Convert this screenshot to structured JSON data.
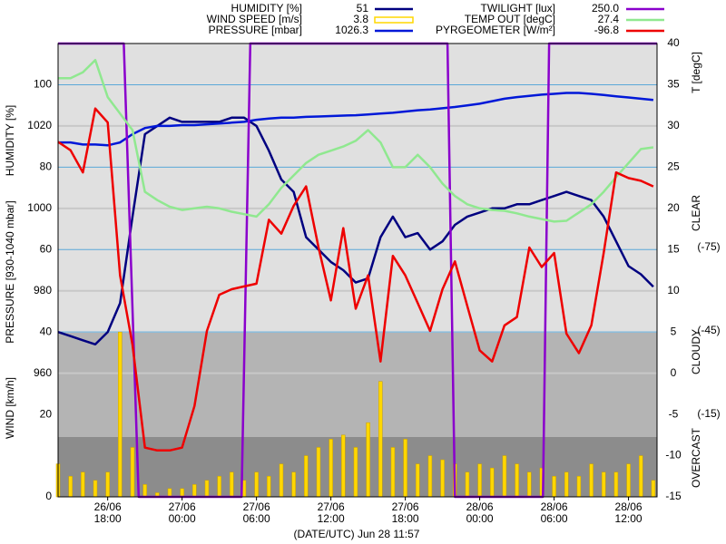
{
  "chart_data": {
    "type": "line",
    "x_label": "(DATE/UTC) Jun 28 11:57",
    "x": [
      14,
      15,
      16,
      17,
      18,
      19,
      20,
      21,
      22,
      23,
      24,
      25,
      26,
      27,
      28,
      29,
      30,
      31,
      32,
      33,
      34,
      35,
      36,
      37,
      38,
      39,
      40,
      41,
      42,
      43,
      44,
      45,
      46,
      47,
      48,
      49,
      50,
      51,
      52,
      53,
      54,
      55,
      56,
      57,
      58,
      59,
      60,
      61,
      62
    ],
    "xlim": [
      14,
      62.3
    ],
    "xticks": [
      {
        "value": 18,
        "label": [
          "26/06",
          "18:00"
        ]
      },
      {
        "value": 24,
        "label": [
          "27/06",
          "00:00"
        ]
      },
      {
        "value": 30,
        "label": [
          "27/06",
          "06:00"
        ]
      },
      {
        "value": 36,
        "label": [
          "27/06",
          "12:00"
        ]
      },
      {
        "value": 42,
        "label": [
          "27/06",
          "18:00"
        ]
      },
      {
        "value": 48,
        "label": [
          "28/06",
          "00:00"
        ]
      },
      {
        "value": 54,
        "label": [
          "28/06",
          "06:00"
        ]
      },
      {
        "value": 60,
        "label": [
          "28/06",
          "12:00"
        ]
      }
    ],
    "axes": {
      "humidity": {
        "label": "HUMIDITY [%]",
        "ylim": [
          0,
          110
        ],
        "yticks": [
          40,
          60,
          80,
          100
        ],
        "grid_color": "#5aa8d8"
      },
      "pressure": {
        "label": "PRESSURE [930-1040 mbar]",
        "ylim": [
          930,
          1040
        ],
        "yticks": [
          960,
          980,
          1000,
          1020
        ],
        "grid_color": "#c8c8c8"
      },
      "wind": {
        "label": "WIND [km/h]",
        "ylim": [
          0,
          110
        ],
        "yticks": [
          0,
          20
        ]
      },
      "temp": {
        "label": "T [degC]",
        "ylim": [
          -15,
          40
        ],
        "yticks": [
          -15,
          -10,
          -5,
          0,
          5,
          10,
          15,
          20,
          25,
          30,
          35,
          40
        ]
      },
      "pyrg": {
        "ylim": [
          14.7,
          -148.4
        ],
        "yticks": [
          {
            "value": -75,
            "label": "(-75)"
          },
          {
            "value": -45,
            "label": "(-45)"
          },
          {
            "value": -15,
            "label": "(-15)"
          }
        ]
      },
      "twilight": {
        "ylim": [
          0,
          250
        ]
      }
    },
    "sky": [
      "CLEAR",
      "CLOUDY",
      "OVERCAST"
    ],
    "series": [
      {
        "name": "HUMIDITY [%]",
        "type": "line",
        "axis": "humidity",
        "color": "#000080",
        "legend_value": "51",
        "values": [
          40,
          39,
          38,
          37,
          40,
          47,
          68,
          88,
          90,
          92,
          91,
          91,
          91,
          91,
          92,
          92,
          90,
          84,
          77,
          74,
          63,
          60,
          57,
          55,
          52,
          53,
          63,
          68,
          63,
          64,
          60,
          62,
          66,
          68,
          69,
          70,
          70,
          71,
          71,
          72,
          73,
          74,
          73,
          72,
          68,
          62,
          56,
          54,
          51
        ]
      },
      {
        "name": "WIND SPEED [m/s]",
        "type": "bar",
        "axis": "wind",
        "color": "#ffd700",
        "legend_value": "3.8",
        "values": [
          8,
          5,
          6,
          4,
          6,
          40,
          12,
          3,
          1,
          2,
          2,
          3,
          4,
          5,
          6,
          4,
          6,
          5,
          8,
          6,
          10,
          12,
          14,
          15,
          12,
          18,
          28,
          12,
          14,
          8,
          10,
          9,
          8,
          6,
          8,
          7,
          10,
          8,
          6,
          7,
          5,
          6,
          5,
          8,
          6,
          6,
          8,
          10,
          4
        ]
      },
      {
        "name": "PRESSURE [mbar]",
        "type": "line",
        "axis": "pressure",
        "color": "#0018d8",
        "legend_value": "1026.3",
        "values": [
          1016,
          1016,
          1015.5,
          1015.5,
          1015.3,
          1016,
          1018,
          1019.5,
          1020,
          1020,
          1020.2,
          1020.2,
          1020.4,
          1020.6,
          1020.8,
          1021,
          1021.5,
          1021.8,
          1022,
          1022,
          1022.2,
          1022.3,
          1022.4,
          1022.5,
          1022.6,
          1022.8,
          1023,
          1023.2,
          1023.5,
          1023.8,
          1024,
          1024.3,
          1024.6,
          1025,
          1025.4,
          1026,
          1026.6,
          1027,
          1027.3,
          1027.6,
          1027.8,
          1028,
          1028,
          1027.8,
          1027.5,
          1027.2,
          1026.9,
          1026.6,
          1026.3
        ]
      },
      {
        "name": "TWILIGHT [lux]",
        "type": "line",
        "axis": "twilight",
        "color": "#8a00cc",
        "legend_value": "250.0",
        "x": [
          14,
          19.3,
          20.5,
          28.8,
          29.5,
          45.4,
          46.0,
          53.1,
          53.6,
          62.3
        ],
        "values": [
          250,
          250,
          0,
          0,
          250,
          250,
          0,
          0,
          250,
          250
        ]
      },
      {
        "name": "TEMP OUT [degC]",
        "type": "line",
        "axis": "temp",
        "color": "#90e890",
        "legend_value": "27.4",
        "values": [
          35.8,
          35.8,
          36.5,
          38,
          33.5,
          31.5,
          29.5,
          22,
          21,
          20.2,
          19.8,
          20,
          20.2,
          20,
          19.6,
          19.3,
          19,
          20.5,
          22.5,
          24,
          25.5,
          26.5,
          27,
          27.5,
          28.2,
          29.5,
          28,
          25,
          25,
          26.5,
          25,
          23,
          21.5,
          20.5,
          20,
          19.8,
          19.7,
          19.4,
          19,
          18.7,
          18.4,
          18.5,
          19.5,
          20.5,
          22,
          23.8,
          25.5,
          27.2,
          27.4
        ]
      },
      {
        "name": "PYRGEOMETER [W/m²]",
        "type": "line",
        "axis": "pyrg",
        "color": "#ee0000",
        "legend_value": "-96.8",
        "values": [
          -113,
          -110,
          -102,
          -125,
          -120,
          -65,
          -40,
          -3,
          -2,
          -2,
          -3,
          -18,
          -45,
          -58,
          -60,
          -61,
          -62,
          -85,
          -80,
          -90,
          -97,
          -75,
          -56,
          -82,
          -53,
          -65,
          -34,
          -72,
          -65,
          -55,
          -45,
          -60,
          -70,
          -54,
          -38,
          -34,
          -47,
          -50,
          -75,
          -68,
          -73,
          -44,
          -37,
          -47,
          -73,
          -102,
          -100,
          -99,
          -97
        ]
      }
    ]
  }
}
